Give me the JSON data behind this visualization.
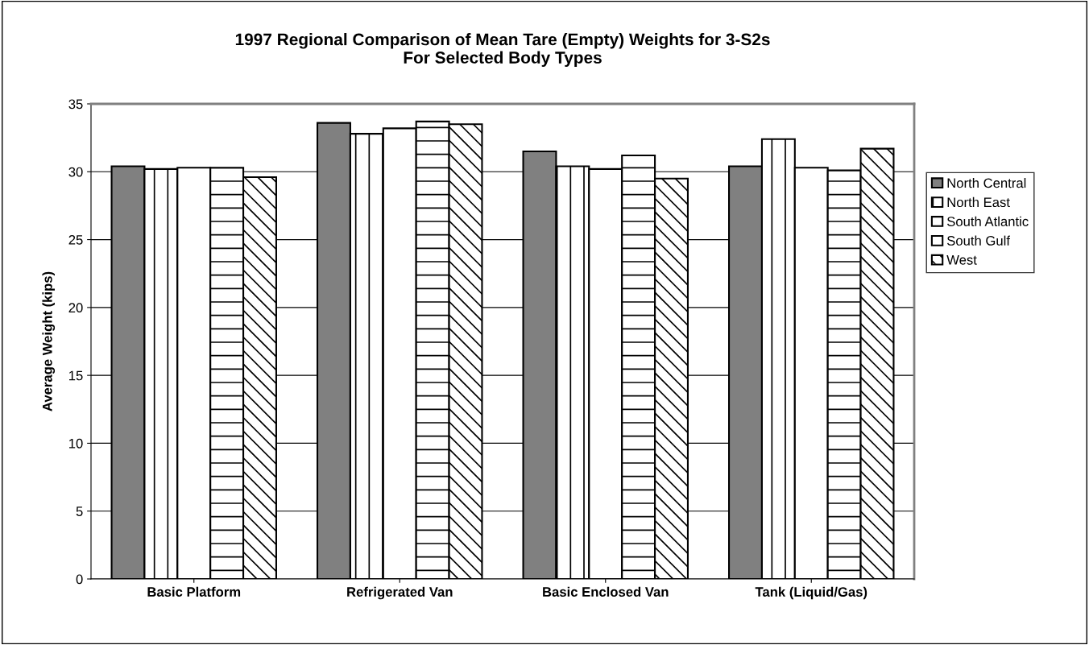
{
  "chart_data": {
    "type": "bar",
    "title": "1997 Regional Comparison of Mean Tare (Empty) Weights for 3-S2s\nFor Selected Body Types",
    "ylabel": "Average Weight (kips)",
    "categories": [
      "Basic Platform",
      "Refrigerated Van",
      "Basic Enclosed Van",
      "Tank (Liquid/Gas)"
    ],
    "series": [
      {
        "name": "North Central",
        "color": "#808080",
        "values": [
          30.4,
          33.6,
          31.5,
          30.4
        ]
      },
      {
        "name": "North East",
        "color": "#ffffff",
        "values": [
          30.2,
          32.8,
          30.4,
          32.4
        ]
      },
      {
        "name": "South Atlantic",
        "color": "#ffffff",
        "values": [
          30.3,
          33.2,
          30.2,
          30.3
        ]
      },
      {
        "name": "South Gulf",
        "color": "#ffffff",
        "values": [
          30.3,
          33.7,
          31.2,
          30.1
        ]
      },
      {
        "name": "West",
        "color": "#ffffff",
        "values": [
          29.6,
          33.5,
          29.5,
          31.7
        ]
      }
    ],
    "ylim": [
      0,
      35
    ],
    "yticks": [
      0,
      5,
      10,
      15,
      20,
      25,
      30,
      35
    ],
    "grid": "y",
    "legend": "right"
  }
}
